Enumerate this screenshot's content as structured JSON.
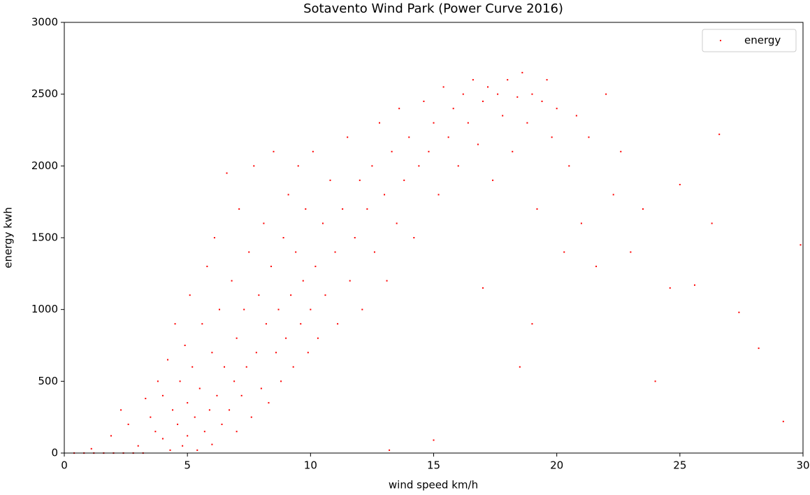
{
  "chart_data": {
    "type": "scatter",
    "title": "Sotavento Wind Park (Power Curve 2016)",
    "x_label": "wind speed km/h",
    "y_label": "energy kwh",
    "xlim": [
      0,
      30
    ],
    "ylim": [
      0,
      3000
    ],
    "xticks": [
      0,
      5,
      10,
      15,
      20,
      25,
      30
    ],
    "yticks": [
      0,
      500,
      1000,
      1500,
      2000,
      2500,
      3000
    ],
    "legend": "upper right",
    "x": [
      0.4,
      0.8,
      1.2,
      1.6,
      2.0,
      2.4,
      2.8,
      3.2,
      1.1,
      1.9,
      2.3,
      2.6,
      3.0,
      3.3,
      3.5,
      3.7,
      3.8,
      4.0,
      4.0,
      4.2,
      4.3,
      4.4,
      4.5,
      4.6,
      4.7,
      4.8,
      4.9,
      5.0,
      5.0,
      5.1,
      5.2,
      5.3,
      5.4,
      5.5,
      5.6,
      5.7,
      5.8,
      5.9,
      6.0,
      6.0,
      6.1,
      6.2,
      6.3,
      6.4,
      6.5,
      6.6,
      6.7,
      6.8,
      6.9,
      7.0,
      7.0,
      7.1,
      7.2,
      7.3,
      7.4,
      7.5,
      7.6,
      7.7,
      7.8,
      7.9,
      8.0,
      8.1,
      8.2,
      8.3,
      8.4,
      8.5,
      8.6,
      8.7,
      8.8,
      8.9,
      9.0,
      9.1,
      9.2,
      9.3,
      9.4,
      9.5,
      9.6,
      9.7,
      9.8,
      9.9,
      10.0,
      10.1,
      10.2,
      10.3,
      10.5,
      10.6,
      10.8,
      11.0,
      11.1,
      11.3,
      11.5,
      11.6,
      11.8,
      12.0,
      12.1,
      12.3,
      12.5,
      12.6,
      12.8,
      13.0,
      13.1,
      13.3,
      13.5,
      13.6,
      13.8,
      14.0,
      14.2,
      14.4,
      14.6,
      14.8,
      15.0,
      15.2,
      15.4,
      15.6,
      15.8,
      16.0,
      16.2,
      16.4,
      16.6,
      16.8,
      17.0,
      17.2,
      17.4,
      17.6,
      17.8,
      18.0,
      18.2,
      18.4,
      18.6,
      18.8,
      19.0,
      19.2,
      19.4,
      19.6,
      19.8,
      20.0,
      20.3,
      20.5,
      20.8,
      21.0,
      21.3,
      21.6,
      22.0,
      22.3,
      22.6,
      23.0,
      23.5,
      24.0,
      24.6,
      25.0,
      25.6,
      26.3,
      26.6,
      27.4,
      28.2,
      29.2,
      29.9,
      15.0,
      13.2,
      18.5,
      17.0,
      19.0
    ],
    "series": [
      {
        "name": "energy",
        "color": "#ff0000",
        "values": [
          0,
          0,
          0,
          0,
          0,
          0,
          0,
          0,
          30,
          120,
          300,
          200,
          50,
          380,
          250,
          150,
          500,
          100,
          400,
          650,
          20,
          300,
          900,
          200,
          500,
          50,
          750,
          120,
          350,
          1100,
          600,
          250,
          20,
          450,
          900,
          150,
          1300,
          300,
          700,
          60,
          1500,
          400,
          1000,
          200,
          600,
          1950,
          300,
          1200,
          500,
          800,
          150,
          1700,
          400,
          1000,
          600,
          1400,
          250,
          2000,
          700,
          1100,
          450,
          1600,
          900,
          350,
          1300,
          2100,
          700,
          1000,
          500,
          1500,
          800,
          1800,
          1100,
          600,
          1400,
          2000,
          900,
          1200,
          1700,
          700,
          1000,
          2100,
          1300,
          800,
          1600,
          1100,
          1900,
          1400,
          900,
          1700,
          2200,
          1200,
          1500,
          1900,
          1000,
          1700,
          2000,
          1400,
          2300,
          1800,
          1200,
          2100,
          1600,
          2400,
          1900,
          2200,
          1500,
          2000,
          2450,
          2100,
          2300,
          1800,
          2550,
          2200,
          2400,
          2000,
          2500,
          2300,
          2600,
          2150,
          2450,
          2550,
          1900,
          2500,
          2350,
          2600,
          2100,
          2480,
          2650,
          2300,
          2500,
          1700,
          2450,
          2600,
          2200,
          2400,
          1400,
          2000,
          2350,
          1600,
          2200,
          1300,
          2500,
          1800,
          2100,
          1400,
          1700,
          500,
          1150,
          1870,
          1170,
          1600,
          2220,
          980,
          730,
          220,
          1450,
          90,
          20,
          600,
          1150,
          900
        ]
      }
    ]
  }
}
